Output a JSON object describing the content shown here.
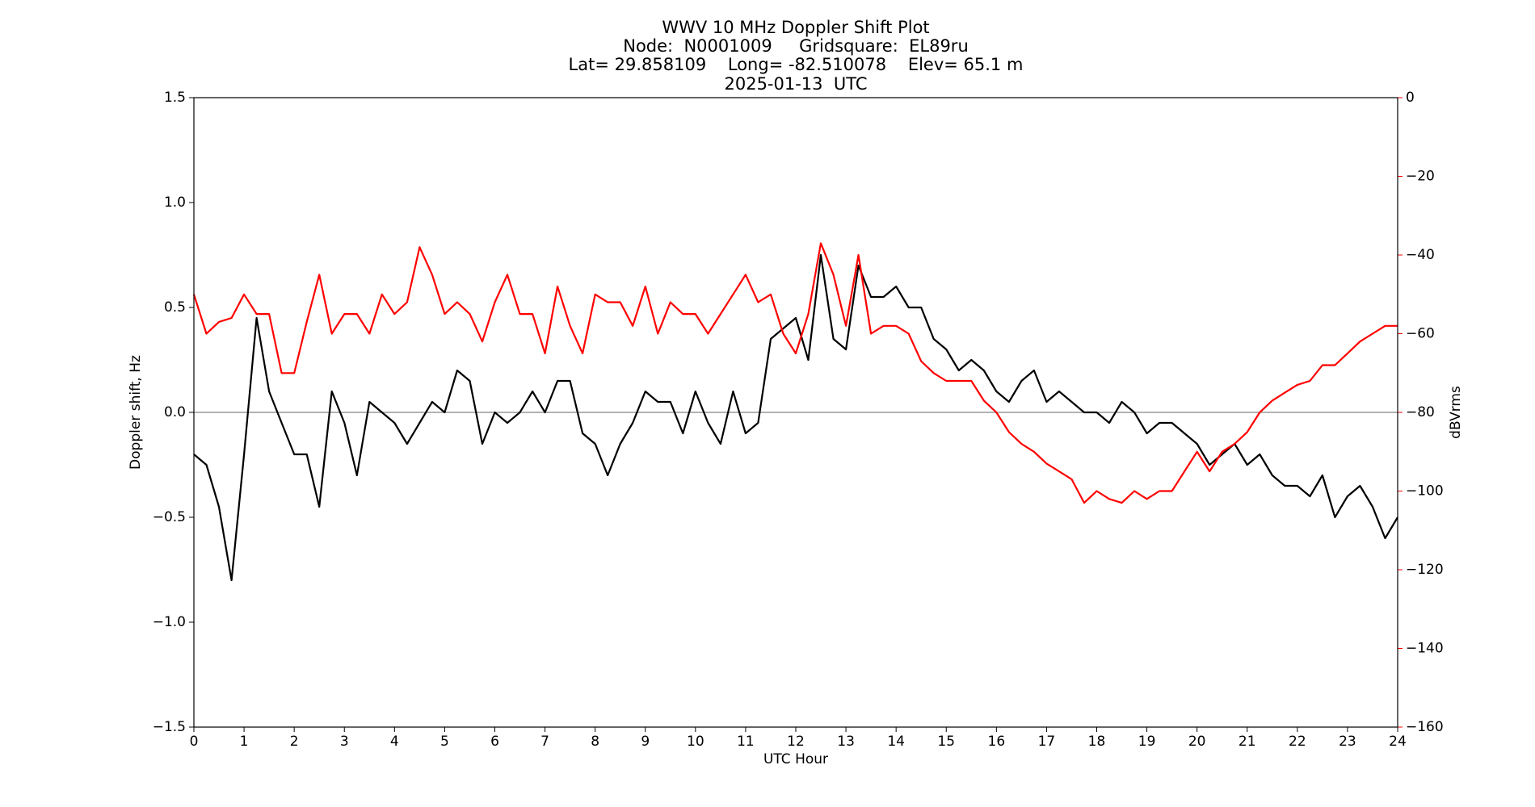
{
  "chart_data": {
    "type": "line",
    "title": "WWV 10 MHz Doppler Shift Plot",
    "subtitle": [
      "Node:  N0001009     Gridsquare:  EL89ru",
      "Lat= 29.858109    Long= -82.510078    Elev= 65.1 m",
      "2025-01-13  UTC"
    ],
    "xlabel": "UTC Hour",
    "ylabel": "Doppler shift, Hz",
    "y2label": "dBVrms",
    "xlim": [
      0,
      24
    ],
    "xticks": [
      0,
      1,
      2,
      3,
      4,
      5,
      6,
      7,
      8,
      9,
      10,
      11,
      12,
      13,
      14,
      15,
      16,
      17,
      18,
      19,
      20,
      21,
      22,
      23,
      24
    ],
    "ylim": [
      -1.5,
      1.5
    ],
    "yticks": [
      {
        "value": -1.5,
        "label": "−1.5"
      },
      {
        "value": -1.0,
        "label": "−1.0"
      },
      {
        "value": -0.5,
        "label": "−0.5"
      },
      {
        "value": 0,
        "label": "0.0"
      },
      0.5,
      {
        "value": 1.0,
        "label": "1.0"
      },
      1.5
    ],
    "y2lim": [
      -160,
      0
    ],
    "y2ticks": [
      {
        "value": -160,
        "label": "−160"
      },
      {
        "value": -140,
        "label": "−140"
      },
      {
        "value": -120,
        "label": "−120"
      },
      {
        "value": -100,
        "label": "−100"
      },
      {
        "value": -80,
        "label": "−80"
      },
      {
        "value": -60,
        "label": "−60"
      },
      {
        "value": -40,
        "label": "−40"
      },
      {
        "value": -20,
        "label": "−20"
      },
      0
    ],
    "y2color": "#ff0000",
    "x": [
      0,
      0.25,
      0.5,
      0.75,
      1,
      1.25,
      1.5,
      1.75,
      2,
      2.25,
      2.5,
      2.75,
      3,
      3.25,
      3.5,
      3.75,
      4,
      4.25,
      4.5,
      4.75,
      5,
      5.25,
      5.5,
      5.75,
      6,
      6.25,
      6.5,
      6.75,
      7,
      7.25,
      7.5,
      7.75,
      8,
      8.25,
      8.5,
      8.75,
      9,
      9.25,
      9.5,
      9.75,
      10,
      10.25,
      10.5,
      10.75,
      11,
      11.25,
      11.5,
      11.75,
      12,
      12.25,
      12.5,
      12.75,
      13,
      13.25,
      13.5,
      13.75,
      14,
      14.25,
      14.5,
      14.75,
      15,
      15.25,
      15.5,
      15.75,
      16,
      16.25,
      16.5,
      16.75,
      17,
      17.25,
      17.5,
      17.75,
      18,
      18.25,
      18.5,
      18.75,
      19,
      19.25,
      19.5,
      19.75,
      20,
      20.25,
      20.5,
      20.75,
      21,
      21.25,
      21.5,
      21.75,
      22,
      22.25,
      22.5,
      22.75,
      23,
      23.25,
      23.5,
      23.75,
      24
    ],
    "series": [
      {
        "name": "Doppler shift",
        "color": "#000000",
        "values": [
          -0.2,
          -0.25,
          -0.45,
          -0.8,
          -0.2,
          0.45,
          0.1,
          -0.05,
          -0.2,
          -0.2,
          -0.45,
          0.1,
          -0.05,
          -0.3,
          0.05,
          0,
          -0.05,
          -0.15,
          -0.05,
          0.05,
          0,
          0.2,
          0.15,
          -0.15,
          0,
          -0.05,
          0,
          0.1,
          0,
          0.15,
          0.15,
          -0.1,
          -0.15,
          -0.3,
          -0.15,
          -0.05,
          0.1,
          0.05,
          0.05,
          -0.1,
          0.1,
          -0.05,
          -0.15,
          0.1,
          -0.1,
          -0.05,
          0.35,
          0.4,
          0.45,
          0.25,
          0.75,
          0.35,
          0.3,
          0.7,
          0.55,
          0.55,
          0.6,
          0.5,
          0.5,
          0.35,
          0.3,
          0.2,
          0.25,
          0.2,
          0.1,
          0.05,
          0.15,
          0.2,
          0.05,
          0.1,
          0.05,
          0,
          0,
          -0.05,
          0.05,
          0,
          -0.1,
          -0.05,
          -0.05,
          -0.1,
          -0.15,
          -0.25,
          -0.2,
          -0.15,
          -0.25,
          -0.2,
          -0.3,
          -0.35,
          -0.35,
          -0.4,
          -0.3,
          -0.5,
          -0.4,
          -0.35,
          -0.45,
          -0.6,
          -0.5
        ]
      },
      {
        "name": "dBVrms",
        "color": "#ff0000",
        "axis": "y2",
        "values": [
          -50,
          -60,
          -57,
          -56,
          -50,
          -55,
          -55,
          -70,
          -70,
          -57,
          -45,
          -60,
          -55,
          -55,
          -60,
          -50,
          -55,
          -52,
          -38,
          -45,
          -55,
          -52,
          -55,
          -62,
          -52,
          -45,
          -55,
          -55,
          -65,
          -48,
          -58,
          -65,
          -50,
          -52,
          -52,
          -58,
          -48,
          -60,
          -52,
          -55,
          -55,
          -60,
          -55,
          -50,
          -45,
          -52,
          -50,
          -60,
          -65,
          -55,
          -37,
          -45,
          -58,
          -40,
          -60,
          -58,
          -58,
          -60,
          -67,
          -70,
          -72,
          -72,
          -72,
          -77,
          -80,
          -85,
          -88,
          -90,
          -93,
          -95,
          -97,
          -103,
          -100,
          -102,
          -103,
          -100,
          -102,
          -100,
          -100,
          -95,
          -90,
          -95,
          -90,
          -88,
          -85,
          -80,
          -77,
          -75,
          -73,
          -72,
          -68,
          -68,
          -65,
          -62,
          -60,
          -58,
          -58
        ]
      }
    ]
  }
}
